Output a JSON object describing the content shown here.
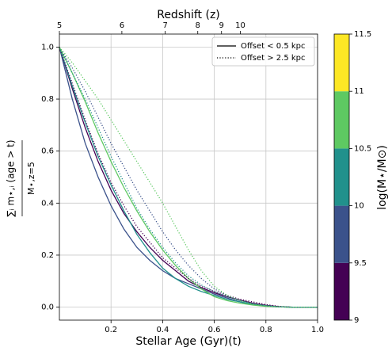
{
  "chart_data": {
    "type": "line",
    "xlabel": "Stellar Age (Gyr)(t)",
    "ylabel_numerator": "∑ᵢ m⋆,ᵢ (age > t)",
    "ylabel_denominator": "M⋆,z=5",
    "top_axis_label": "Redshift (z)",
    "top_ticks": [
      {
        "value": 0,
        "label": "5"
      },
      {
        "value": 0.242,
        "label": "6"
      },
      {
        "value": 0.41,
        "label": "7"
      },
      {
        "value": 0.536,
        "label": "8"
      },
      {
        "value": 0.628,
        "label": "9"
      },
      {
        "value": 0.701,
        "label": "10"
      }
    ],
    "x": [
      0,
      0.05,
      0.1,
      0.15,
      0.2,
      0.25,
      0.3,
      0.35,
      0.4,
      0.45,
      0.5,
      0.55,
      0.6,
      0.65,
      0.7,
      0.75,
      0.8,
      0.85,
      0.9,
      0.95,
      1.0
    ],
    "xlim": [
      0,
      1.0
    ],
    "ylim": [
      -0.05,
      1.05
    ],
    "xticks": [
      0.2,
      0.4,
      0.6,
      0.8,
      1.0
    ],
    "yticks": [
      0.0,
      0.2,
      0.4,
      0.6,
      0.8,
      1.0
    ],
    "grid": true,
    "legend": [
      {
        "label": "Offset < 0.5 kpc",
        "dash": "solid"
      },
      {
        "label": "Offset > 2.5 kpc",
        "dash": "dotted"
      }
    ],
    "series": [
      {
        "color": "#3b528b",
        "dash": "solid",
        "values": [
          1,
          0.8,
          0.63,
          0.5,
          0.39,
          0.3,
          0.23,
          0.18,
          0.14,
          0.11,
          0.09,
          0.07,
          0.05,
          0.035,
          0.02,
          0.01,
          0.004,
          0.001,
          0,
          0,
          0
        ]
      },
      {
        "color": "#440154",
        "dash": "solid",
        "values": [
          1,
          0.84,
          0.69,
          0.56,
          0.45,
          0.36,
          0.29,
          0.23,
          0.18,
          0.14,
          0.1,
          0.075,
          0.055,
          0.04,
          0.027,
          0.015,
          0.007,
          0.002,
          0,
          0,
          0
        ]
      },
      {
        "color": "#21918c",
        "dash": "solid",
        "values": [
          1,
          0.85,
          0.71,
          0.58,
          0.47,
          0.37,
          0.28,
          0.21,
          0.15,
          0.11,
          0.08,
          0.06,
          0.045,
          0.03,
          0.02,
          0.01,
          0.005,
          0.001,
          0,
          0,
          0
        ]
      },
      {
        "color": "#5ec962",
        "dash": "solid",
        "values": [
          1,
          0.9,
          0.79,
          0.67,
          0.56,
          0.46,
          0.37,
          0.29,
          0.22,
          0.16,
          0.11,
          0.07,
          0.04,
          0.025,
          0.015,
          0.008,
          0.003,
          0.001,
          0,
          0,
          0
        ]
      },
      {
        "color": "#440154",
        "dash": "dotted",
        "values": [
          1,
          0.86,
          0.72,
          0.59,
          0.48,
          0.39,
          0.31,
          0.25,
          0.19,
          0.15,
          0.11,
          0.08,
          0.06,
          0.045,
          0.03,
          0.02,
          0.01,
          0.003,
          0,
          0,
          0
        ]
      },
      {
        "color": "#3b528b",
        "dash": "dotted",
        "values": [
          1,
          0.92,
          0.83,
          0.73,
          0.63,
          0.54,
          0.45,
          0.37,
          0.29,
          0.22,
          0.16,
          0.11,
          0.07,
          0.045,
          0.025,
          0.012,
          0.005,
          0.001,
          0,
          0,
          0
        ]
      },
      {
        "color": "#21918c",
        "dash": "dotted",
        "values": [
          1,
          0.9,
          0.8,
          0.69,
          0.58,
          0.48,
          0.38,
          0.3,
          0.23,
          0.17,
          0.12,
          0.085,
          0.06,
          0.04,
          0.025,
          0.013,
          0.006,
          0.001,
          0,
          0,
          0
        ]
      },
      {
        "color": "#5ec962",
        "dash": "dotted",
        "values": [
          1,
          0.94,
          0.87,
          0.8,
          0.72,
          0.64,
          0.56,
          0.48,
          0.4,
          0.31,
          0.22,
          0.14,
          0.08,
          0.045,
          0.025,
          0.012,
          0.005,
          0.001,
          0,
          0,
          0
        ]
      }
    ],
    "colorbar": {
      "label": "log(M⋆/M⊙)",
      "ticks": [
        9,
        9.5,
        10,
        10.5,
        11,
        11.5
      ],
      "colors": [
        "#440154",
        "#3b528b",
        "#21918c",
        "#5ec962",
        "#fde725"
      ]
    }
  }
}
